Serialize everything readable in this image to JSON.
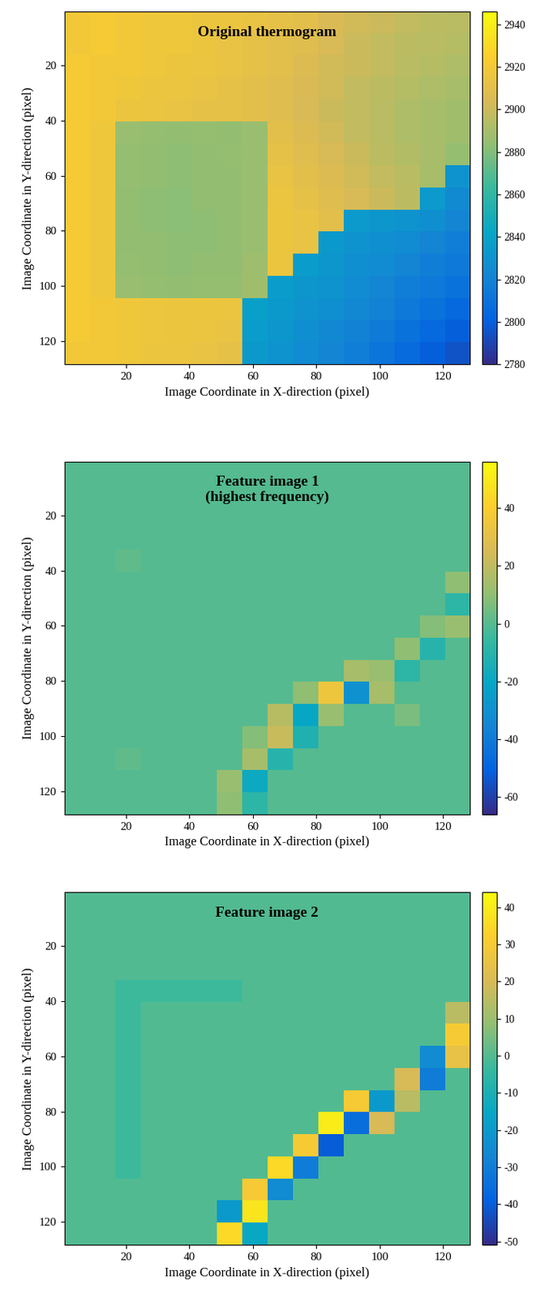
{
  "chart_data": [
    {
      "type": "heatmap",
      "title": "Original thermogram",
      "x_label": "Image Coordinate in X-direction (pixel)",
      "y_label": "Image Coordinate in Y-direction (pixel)",
      "xlim": [
        0.5,
        128.5
      ],
      "ylim": [
        128.5,
        0.5
      ],
      "xticks": [
        20,
        40,
        60,
        80,
        100,
        120
      ],
      "yticks": [
        20,
        40,
        60,
        80,
        100,
        120
      ],
      "colorbar": {
        "range": [
          2780,
          2946
        ],
        "ticks": [
          2780,
          2800,
          2820,
          2840,
          2860,
          2880,
          2900,
          2920,
          2940
        ]
      },
      "cells": [
        [
          2920,
          2922,
          2920,
          2918,
          2918,
          2916,
          2915,
          2914,
          2912,
          2910,
          2905,
          2902,
          2900,
          2898,
          2896,
          2895
        ],
        [
          2920,
          2922,
          2920,
          2918,
          2918,
          2916,
          2914,
          2912,
          2910,
          2908,
          2904,
          2900,
          2898,
          2896,
          2895,
          2894
        ],
        [
          2922,
          2920,
          2920,
          2918,
          2916,
          2915,
          2914,
          2912,
          2910,
          2906,
          2902,
          2900,
          2898,
          2895,
          2894,
          2892
        ],
        [
          2922,
          2920,
          2918,
          2916,
          2915,
          2914,
          2912,
          2910,
          2908,
          2905,
          2902,
          2898,
          2896,
          2894,
          2892,
          2890
        ],
        [
          2922,
          2920,
          2916,
          2915,
          2914,
          2912,
          2912,
          2910,
          2908,
          2904,
          2900,
          2898,
          2895,
          2892,
          2890,
          2888
        ],
        [
          2922,
          2918,
          2886,
          2885,
          2884,
          2885,
          2884,
          2886,
          2910,
          2906,
          2902,
          2898,
          2895,
          2892,
          2890,
          2888
        ],
        [
          2922,
          2918,
          2885,
          2884,
          2883,
          2884,
          2885,
          2886,
          2912,
          2908,
          2904,
          2900,
          2896,
          2893,
          2890,
          2885
        ],
        [
          2922,
          2918,
          2885,
          2884,
          2883,
          2884,
          2884,
          2886,
          2914,
          2910,
          2906,
          2902,
          2898,
          2895,
          2890,
          2830
        ],
        [
          2922,
          2918,
          2884,
          2883,
          2882,
          2884,
          2884,
          2886,
          2915,
          2912,
          2908,
          2904,
          2900,
          2896,
          2835,
          2825
        ],
        [
          2922,
          2918,
          2884,
          2883,
          2882,
          2883,
          2884,
          2886,
          2916,
          2914,
          2910,
          2835,
          2832,
          2830,
          2828,
          2822
        ],
        [
          2922,
          2918,
          2884,
          2884,
          2883,
          2883,
          2884,
          2886,
          2916,
          2914,
          2834,
          2830,
          2828,
          2826,
          2822,
          2818
        ],
        [
          2922,
          2918,
          2885,
          2884,
          2883,
          2884,
          2884,
          2887,
          2916,
          2836,
          2832,
          2828,
          2826,
          2822,
          2818,
          2815
        ],
        [
          2922,
          2918,
          2886,
          2885,
          2884,
          2885,
          2885,
          2888,
          2836,
          2832,
          2830,
          2826,
          2822,
          2818,
          2815,
          2810
        ],
        [
          2922,
          2920,
          2918,
          2917,
          2916,
          2916,
          2915,
          2838,
          2834,
          2830,
          2828,
          2824,
          2820,
          2815,
          2810,
          2805
        ],
        [
          2922,
          2920,
          2918,
          2917,
          2916,
          2915,
          2914,
          2836,
          2832,
          2828,
          2824,
          2820,
          2816,
          2810,
          2805,
          2800
        ],
        [
          2920,
          2920,
          2918,
          2916,
          2915,
          2914,
          2912,
          2834,
          2830,
          2826,
          2822,
          2818,
          2812,
          2806,
          2800,
          2795
        ]
      ]
    },
    {
      "type": "heatmap",
      "title": "Feature image 1\n(highest frequency)",
      "x_label": "Image Coordinate in X-direction (pixel)",
      "y_label": "Image Coordinate in Y-direction (pixel)",
      "xlim": [
        0.5,
        128.5
      ],
      "ylim": [
        128.5,
        0.5
      ],
      "xticks": [
        20,
        40,
        60,
        80,
        100,
        120
      ],
      "yticks": [
        20,
        40,
        60,
        80,
        100,
        120
      ],
      "colorbar": {
        "range": [
          -66,
          56
        ],
        "ticks": [
          -60,
          -40,
          -20,
          0,
          20,
          40
        ]
      },
      "cells": [
        [
          0,
          0,
          0,
          0,
          0,
          0,
          0,
          0,
          0,
          0,
          0,
          0,
          0,
          0,
          0,
          0
        ],
        [
          0,
          0,
          0,
          0,
          0,
          0,
          0,
          0,
          0,
          0,
          0,
          0,
          0,
          0,
          0,
          0
        ],
        [
          0,
          0,
          0,
          0,
          0,
          0,
          0,
          0,
          0,
          0,
          0,
          0,
          0,
          0,
          0,
          0
        ],
        [
          0,
          0,
          0,
          0,
          0,
          0,
          0,
          0,
          0,
          0,
          0,
          0,
          0,
          0,
          0,
          0
        ],
        [
          0,
          0,
          2,
          0,
          0,
          0,
          0,
          0,
          0,
          0,
          0,
          0,
          0,
          0,
          0,
          0
        ],
        [
          0,
          0,
          0,
          0,
          0,
          0,
          0,
          0,
          0,
          0,
          0,
          0,
          0,
          0,
          0,
          10
        ],
        [
          0,
          0,
          0,
          0,
          0,
          0,
          0,
          0,
          0,
          0,
          0,
          0,
          0,
          0,
          0,
          -8
        ],
        [
          0,
          0,
          0,
          0,
          0,
          0,
          0,
          0,
          0,
          0,
          0,
          0,
          0,
          0,
          8,
          12
        ],
        [
          0,
          0,
          0,
          0,
          0,
          0,
          0,
          0,
          0,
          0,
          0,
          0,
          0,
          10,
          -10,
          0
        ],
        [
          0,
          0,
          0,
          0,
          0,
          0,
          0,
          0,
          0,
          0,
          0,
          15,
          12,
          -8,
          0,
          0
        ],
        [
          0,
          0,
          0,
          0,
          0,
          0,
          0,
          0,
          0,
          10,
          35,
          -30,
          15,
          0,
          0,
          0
        ],
        [
          0,
          0,
          0,
          0,
          0,
          0,
          0,
          0,
          18,
          -20,
          12,
          0,
          0,
          6,
          0,
          0
        ],
        [
          0,
          0,
          0,
          0,
          0,
          0,
          0,
          8,
          22,
          -12,
          0,
          0,
          0,
          0,
          0,
          0
        ],
        [
          0,
          0,
          2,
          0,
          0,
          0,
          0,
          15,
          -10,
          0,
          0,
          0,
          0,
          0,
          0,
          0
        ],
        [
          0,
          0,
          0,
          0,
          0,
          0,
          12,
          -18,
          0,
          0,
          0,
          0,
          0,
          0,
          0,
          0
        ],
        [
          0,
          0,
          0,
          0,
          0,
          0,
          10,
          -8,
          0,
          0,
          0,
          0,
          0,
          0,
          0,
          0
        ]
      ]
    },
    {
      "type": "heatmap",
      "title": "Feature image 2",
      "x_label": "Image Coordinate in X-direction (pixel)",
      "y_label": "Image Coordinate in Y-direction (pixel)",
      "xlim": [
        0.5,
        128.5
      ],
      "ylim": [
        128.5,
        0.5
      ],
      "xticks": [
        20,
        40,
        60,
        80,
        100,
        120
      ],
      "yticks": [
        20,
        40,
        60,
        80,
        100,
        120
      ],
      "colorbar": {
        "range": [
          -51,
          44
        ],
        "ticks": [
          -50,
          -40,
          -30,
          -20,
          -10,
          0,
          10,
          20,
          30,
          40
        ]
      },
      "cells": [
        [
          0,
          0,
          0,
          0,
          0,
          0,
          0,
          0,
          0,
          0,
          0,
          0,
          0,
          0,
          0,
          0
        ],
        [
          0,
          0,
          0,
          0,
          0,
          0,
          0,
          0,
          0,
          0,
          0,
          0,
          0,
          0,
          0,
          0
        ],
        [
          0,
          0,
          0,
          0,
          0,
          0,
          0,
          0,
          0,
          0,
          0,
          0,
          0,
          0,
          0,
          0
        ],
        [
          0,
          0,
          0,
          0,
          0,
          0,
          0,
          0,
          0,
          0,
          0,
          0,
          0,
          0,
          0,
          0
        ],
        [
          0,
          0,
          -3,
          -3,
          -3,
          -3,
          -3,
          0,
          0,
          0,
          0,
          0,
          0,
          0,
          0,
          0
        ],
        [
          0,
          0,
          -3,
          0,
          0,
          0,
          0,
          0,
          0,
          0,
          0,
          0,
          0,
          0,
          0,
          15
        ],
        [
          0,
          0,
          -3,
          0,
          0,
          0,
          0,
          0,
          0,
          0,
          0,
          0,
          0,
          0,
          0,
          30
        ],
        [
          0,
          0,
          -3,
          0,
          0,
          0,
          0,
          0,
          0,
          0,
          0,
          0,
          0,
          0,
          -25,
          25
        ],
        [
          0,
          0,
          -3,
          0,
          0,
          0,
          0,
          0,
          0,
          0,
          0,
          0,
          0,
          20,
          -30,
          0
        ],
        [
          0,
          0,
          -3,
          0,
          0,
          0,
          0,
          0,
          0,
          0,
          0,
          30,
          -20,
          15,
          0,
          0
        ],
        [
          0,
          0,
          -3,
          0,
          0,
          0,
          0,
          0,
          0,
          0,
          40,
          -35,
          20,
          0,
          0,
          0
        ],
        [
          0,
          0,
          -3,
          0,
          0,
          0,
          0,
          0,
          0,
          30,
          -40,
          0,
          0,
          0,
          0,
          0
        ],
        [
          0,
          0,
          -3,
          0,
          0,
          0,
          0,
          0,
          35,
          -30,
          0,
          0,
          0,
          0,
          0,
          0
        ],
        [
          0,
          0,
          0,
          0,
          0,
          0,
          0,
          30,
          -25,
          0,
          0,
          0,
          0,
          0,
          0,
          0
        ],
        [
          0,
          0,
          0,
          0,
          0,
          0,
          -20,
          38,
          0,
          0,
          0,
          0,
          0,
          0,
          0,
          0
        ],
        [
          0,
          0,
          0,
          0,
          0,
          0,
          35,
          -15,
          0,
          0,
          0,
          0,
          0,
          0,
          0,
          0
        ]
      ]
    }
  ]
}
